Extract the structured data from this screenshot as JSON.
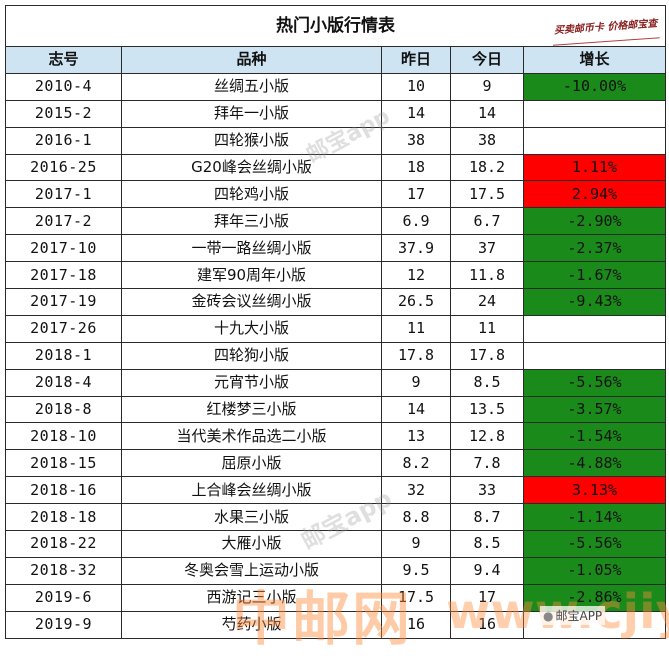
{
  "title": "热门小版行情表",
  "stamp_text": "买卖邮币卡 价格邮宝查",
  "headers": {
    "code": "志号",
    "name": "品种",
    "yesterday": "昨日",
    "today": "今日",
    "change": "增长"
  },
  "rows": [
    {
      "code": "2010-4",
      "name": "丝绸五小版",
      "yesterday": "10",
      "today": "9",
      "change": "-10.00%",
      "trend": "down"
    },
    {
      "code": "2015-2",
      "name": "拜年一小版",
      "yesterday": "14",
      "today": "14",
      "change": "",
      "trend": "flat"
    },
    {
      "code": "2016-1",
      "name": "四轮猴小版",
      "yesterday": "38",
      "today": "38",
      "change": "",
      "trend": "flat"
    },
    {
      "code": "2016-25",
      "name": "G20峰会丝绸小版",
      "yesterday": "18",
      "today": "18.2",
      "change": "1.11%",
      "trend": "up"
    },
    {
      "code": "2017-1",
      "name": "四轮鸡小版",
      "yesterday": "17",
      "today": "17.5",
      "change": "2.94%",
      "trend": "up"
    },
    {
      "code": "2017-2",
      "name": "拜年三小版",
      "yesterday": "6.9",
      "today": "6.7",
      "change": "-2.90%",
      "trend": "down"
    },
    {
      "code": "2017-10",
      "name": "一带一路丝绸小版",
      "yesterday": "37.9",
      "today": "37",
      "change": "-2.37%",
      "trend": "down"
    },
    {
      "code": "2017-18",
      "name": "建军90周年小版",
      "yesterday": "12",
      "today": "11.8",
      "change": "-1.67%",
      "trend": "down"
    },
    {
      "code": "2017-19",
      "name": "金砖会议丝绸小版",
      "yesterday": "26.5",
      "today": "24",
      "change": "-9.43%",
      "trend": "down"
    },
    {
      "code": "2017-26",
      "name": "十九大小版",
      "yesterday": "11",
      "today": "11",
      "change": "",
      "trend": "flat"
    },
    {
      "code": "2018-1",
      "name": "四轮狗小版",
      "yesterday": "17.8",
      "today": "17.8",
      "change": "",
      "trend": "flat"
    },
    {
      "code": "2018-4",
      "name": "元宵节小版",
      "yesterday": "9",
      "today": "8.5",
      "change": "-5.56%",
      "trend": "down"
    },
    {
      "code": "2018-8",
      "name": "红楼梦三小版",
      "yesterday": "14",
      "today": "13.5",
      "change": "-3.57%",
      "trend": "down"
    },
    {
      "code": "2018-10",
      "name": "当代美术作品选二小版",
      "yesterday": "13",
      "today": "12.8",
      "change": "-1.54%",
      "trend": "down"
    },
    {
      "code": "2018-15",
      "name": "屈原小版",
      "yesterday": "8.2",
      "today": "7.8",
      "change": "-4.88%",
      "trend": "down"
    },
    {
      "code": "2018-16",
      "name": "上合峰会丝绸小版",
      "yesterday": "32",
      "today": "33",
      "change": "3.13%",
      "trend": "up"
    },
    {
      "code": "2018-18",
      "name": "水果三小版",
      "yesterday": "8.8",
      "today": "8.7",
      "change": "-1.14%",
      "trend": "down"
    },
    {
      "code": "2018-22",
      "name": "大雁小版",
      "yesterday": "9",
      "today": "8.5",
      "change": "-5.56%",
      "trend": "down"
    },
    {
      "code": "2018-32",
      "name": "冬奥会雪上运动小版",
      "yesterday": "9.5",
      "today": "9.4",
      "change": "-1.05%",
      "trend": "down"
    },
    {
      "code": "2019-6",
      "name": "西游记三小版",
      "yesterday": "17.5",
      "today": "17",
      "change": "-2.86%",
      "trend": "down"
    },
    {
      "code": "2019-9",
      "name": "芍药小版",
      "yesterday": "16",
      "today": "16",
      "change": "",
      "trend": "flat"
    }
  ],
  "watermarks": {
    "app_mark_1": "邮宝app",
    "app_mark_2": "邮宝app",
    "site_cn": "中邮网",
    "site_url": "www.cjiyou.net",
    "badge": "邮宝APP"
  },
  "colors": {
    "header_bg": "#cfe4f2",
    "down_bg": "#1a8a1a",
    "up_bg": "#ff0000"
  }
}
